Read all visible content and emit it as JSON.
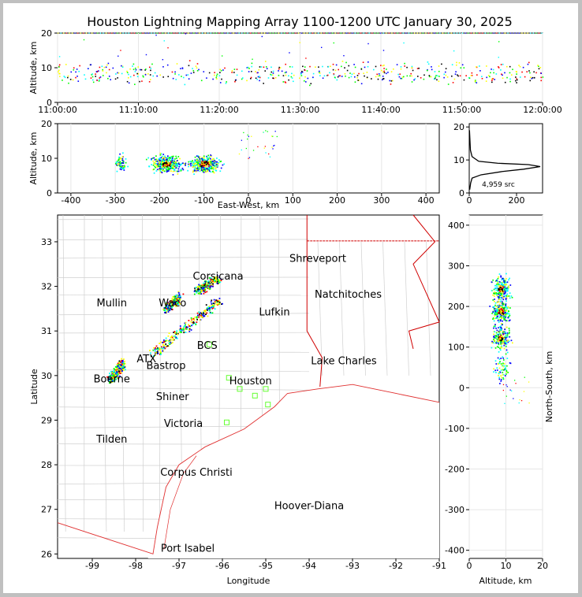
{
  "chart_data": [
    {
      "type": "scatter",
      "panel": "altitude-time",
      "title": "Houston Lightning Mapping Array 1100-1200 UTC January 30, 2025",
      "ylabel": "Altitude, km",
      "xlabel": "",
      "x_tick_labels": [
        "11:00:00",
        "11:10:00",
        "11:20:00",
        "11:30:00",
        "11:40:00",
        "11:50:00",
        "12:00:00"
      ],
      "xlim_minutes": [
        0,
        60
      ],
      "ylim": [
        0,
        20
      ],
      "y_ticks": [
        0,
        10,
        20
      ],
      "grid": true,
      "main_band_altitude_km": [
        6,
        11
      ],
      "color_scale": [
        "#0000ff",
        "#00ffff",
        "#00ff00",
        "#ffff00",
        "#ff0000",
        "#000000"
      ]
    },
    {
      "type": "scatter",
      "panel": "altitude-east-west",
      "xlabel": "East-West, km",
      "ylabel": "Altitude, km",
      "xlim": [
        -430,
        430
      ],
      "ylim": [
        0,
        20
      ],
      "x_ticks": [
        -400,
        -300,
        -200,
        -100,
        0,
        100,
        200,
        300,
        400
      ],
      "y_ticks": [
        0,
        10,
        20
      ],
      "grid": true,
      "clusters": [
        {
          "x": -290,
          "alt": 9,
          "density": "low"
        },
        {
          "x": -185,
          "alt": 8.5,
          "density": "high"
        },
        {
          "x": -100,
          "alt": 8.5,
          "density": "high"
        }
      ]
    },
    {
      "type": "line",
      "panel": "altitude-histogram",
      "annotation": "4,959 src",
      "xlim": [
        0,
        310
      ],
      "ylim": [
        0,
        21
      ],
      "x_ticks": [
        0,
        200
      ],
      "y_ticks": [
        0,
        10,
        20
      ],
      "profile": [
        {
          "count": 2,
          "alt": 1
        },
        {
          "count": 6,
          "alt": 3
        },
        {
          "count": 12,
          "alt": 4.5
        },
        {
          "count": 50,
          "alt": 5.5
        },
        {
          "count": 140,
          "alt": 6.5
        },
        {
          "count": 230,
          "alt": 7.2
        },
        {
          "count": 300,
          "alt": 8
        },
        {
          "count": 250,
          "alt": 8.6
        },
        {
          "count": 120,
          "alt": 9
        },
        {
          "count": 40,
          "alt": 9.6
        },
        {
          "count": 12,
          "alt": 11
        },
        {
          "count": 5,
          "alt": 13
        },
        {
          "count": 3,
          "alt": 16
        },
        {
          "count": 1,
          "alt": 19
        }
      ]
    },
    {
      "type": "map",
      "panel": "plan-view",
      "xlabel": "Longitude",
      "ylabel": "Latitude",
      "xlim": [
        -99.8,
        -91
      ],
      "ylim": [
        25.9,
        33.6
      ],
      "x_ticks": [
        -99,
        -98,
        -97,
        -96,
        -95,
        -94,
        -93,
        -92,
        -91
      ],
      "y_ticks": [
        26,
        27,
        28,
        29,
        30,
        31,
        32,
        33
      ],
      "lightning_tracks": [
        {
          "from": [
            -97.6,
            30.5
          ],
          "to": [
            -96.1,
            31.7
          ]
        },
        {
          "from": [
            -96.6,
            31.9
          ],
          "to": [
            -96.1,
            32.2
          ]
        },
        {
          "from": [
            -98.6,
            29.9
          ],
          "to": [
            -98.3,
            30.3
          ]
        },
        {
          "from": [
            -97.3,
            31.5
          ],
          "to": [
            -97.0,
            31.8
          ]
        }
      ],
      "places": [
        {
          "name": "Shreveport",
          "lon": -93.8,
          "lat": 32.55,
          "color": "#000000"
        },
        {
          "name": "Corsicana",
          "lon": -96.1,
          "lat": 32.15,
          "color": "#000000"
        },
        {
          "name": "Mullin",
          "lon": -98.55,
          "lat": 31.55,
          "color": "#ff8c3a"
        },
        {
          "name": "Waco",
          "lon": -97.15,
          "lat": 31.55,
          "color": "#000000"
        },
        {
          "name": "Natchitoches",
          "lon": -93.1,
          "lat": 31.75,
          "color": "#000000"
        },
        {
          "name": "Lufkin",
          "lon": -94.8,
          "lat": 31.35,
          "color": "#000000"
        },
        {
          "name": "BCS",
          "lon": -96.35,
          "lat": 30.6,
          "color": "#7a0000"
        },
        {
          "name": "ATX",
          "lon": -97.75,
          "lat": 30.3,
          "color": "#ff8c3a"
        },
        {
          "name": "Bastrop",
          "lon": -97.3,
          "lat": 30.15,
          "color": "#000000"
        },
        {
          "name": "Lake Charles",
          "lon": -93.2,
          "lat": 30.25,
          "color": "#000000"
        },
        {
          "name": "Boerne",
          "lon": -98.55,
          "lat": 29.85,
          "color": "#000000"
        },
        {
          "name": "Houston",
          "lon": -95.35,
          "lat": 29.8,
          "color": "#e3a000"
        },
        {
          "name": "Shiner",
          "lon": -97.15,
          "lat": 29.45,
          "color": "#000000"
        },
        {
          "name": "Victoria",
          "lon": -96.9,
          "lat": 28.85,
          "color": "#000000"
        },
        {
          "name": "Tilden",
          "lon": -98.55,
          "lat": 28.5,
          "color": "#000000"
        },
        {
          "name": "Corpus Christi",
          "lon": -96.6,
          "lat": 27.75,
          "color": "#000000"
        },
        {
          "name": "Hoover-Diana",
          "lon": -94.0,
          "lat": 27.0,
          "color": "#0000ff"
        },
        {
          "name": "Port Isabel",
          "lon": -96.8,
          "lat": 26.05,
          "color": "#000000"
        }
      ],
      "stations": [
        {
          "lon": -95.85,
          "lat": 29.95
        },
        {
          "lon": -95.6,
          "lat": 29.7
        },
        {
          "lon": -95.25,
          "lat": 29.55
        },
        {
          "lon": -95.0,
          "lat": 29.7
        },
        {
          "lon": -94.95,
          "lat": 29.35
        },
        {
          "lon": -95.9,
          "lat": 28.95
        },
        {
          "lon": -96.3,
          "lat": 30.7
        }
      ]
    },
    {
      "type": "scatter",
      "panel": "north-south-altitude",
      "xlabel": "Altitude, km",
      "ylabel": "North-South, km",
      "xlim": [
        0,
        20
      ],
      "ylim": [
        -420,
        425
      ],
      "x_ticks": [
        0,
        10,
        20
      ],
      "y_ticks": [
        -400,
        -300,
        -200,
        -100,
        0,
        100,
        200,
        300,
        400
      ],
      "grid": true,
      "clusters": [
        {
          "y": 245,
          "alt": 8.5,
          "density": "high"
        },
        {
          "y": 190,
          "alt": 8.5,
          "density": "high"
        },
        {
          "y": 125,
          "alt": 8.5,
          "density": "high"
        },
        {
          "y": 50,
          "alt": 8.5,
          "density": "low"
        }
      ]
    }
  ]
}
